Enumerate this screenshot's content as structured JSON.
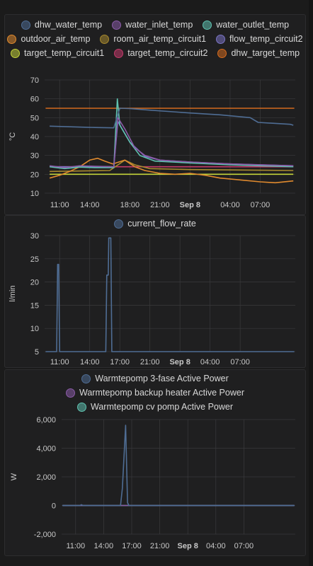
{
  "colors": {
    "background": "#1b1b1b",
    "panel": "#1f1f20",
    "grid": "#3a3a3c",
    "text": "#c8c8c8"
  },
  "chart_data": [
    {
      "type": "line",
      "ylabel": "°C",
      "ylim": [
        10,
        70
      ],
      "yticks": [
        10,
        20,
        30,
        40,
        50,
        60,
        70
      ],
      "x_tick_labels": [
        "11:00",
        "14:00",
        "18:00",
        "21:00",
        "Sep 8",
        "04:00",
        "07:00"
      ],
      "x_tick_hours": [
        11,
        14,
        18,
        21,
        24,
        28,
        31
      ],
      "xlim_hours": [
        9.5,
        34.5
      ],
      "grid": true,
      "legend_position": "top-center",
      "series": [
        {
          "name": "dhw_water_temp",
          "color": "#4f6d94",
          "points": [
            [
              10,
              45.5
            ],
            [
              14.5,
              44.8
            ],
            [
              16.4,
              44.6
            ],
            [
              17.0,
              55.0
            ],
            [
              18.0,
              54.8
            ],
            [
              20.0,
              54.0
            ],
            [
              24.0,
              52.5
            ],
            [
              27.0,
              51.5
            ],
            [
              30.0,
              50.0
            ],
            [
              30.8,
              47.5
            ],
            [
              34.0,
              46.5
            ],
            [
              34.3,
              46.0
            ]
          ]
        },
        {
          "name": "water_inlet_temp",
          "color": "#8b5ba8",
          "points": [
            [
              10,
              24.5
            ],
            [
              11.5,
              23.5
            ],
            [
              13.0,
              24.5
            ],
            [
              14.5,
              24.2
            ],
            [
              16.4,
              24.0
            ],
            [
              16.8,
              50.0
            ],
            [
              17.5,
              44.0
            ],
            [
              18.5,
              34.0
            ],
            [
              19.5,
              30.0
            ],
            [
              21.0,
              27.5
            ],
            [
              24.0,
              26.5
            ],
            [
              28.0,
              25.5
            ],
            [
              31.0,
              25.0
            ],
            [
              34.3,
              24.5
            ]
          ]
        },
        {
          "name": "water_outlet_temp",
          "color": "#5fc2b0",
          "points": [
            [
              10,
              24.0
            ],
            [
              11.5,
              23.0
            ],
            [
              13.0,
              23.8
            ],
            [
              14.5,
              23.5
            ],
            [
              16.4,
              23.5
            ],
            [
              16.75,
              60.0
            ],
            [
              17.0,
              46.0
            ],
            [
              18.0,
              37.0
            ],
            [
              19.0,
              30.0
            ],
            [
              20.5,
              27.0
            ],
            [
              24.0,
              26.0
            ],
            [
              28.0,
              25.0
            ],
            [
              31.0,
              24.5
            ],
            [
              34.3,
              24.0
            ]
          ]
        },
        {
          "name": "outdoor_air_temp",
          "color": "#e08a2e",
          "points": [
            [
              10,
              18.0
            ],
            [
              11.0,
              19.5
            ],
            [
              12.0,
              21.5
            ],
            [
              13.0,
              24.0
            ],
            [
              14.0,
              27.5
            ],
            [
              14.8,
              28.5
            ],
            [
              15.5,
              27.0
            ],
            [
              16.3,
              25.5
            ],
            [
              17.5,
              27.5
            ],
            [
              18.5,
              24.0
            ],
            [
              19.5,
              22.0
            ],
            [
              21.0,
              20.5
            ],
            [
              22.5,
              20.0
            ],
            [
              24.0,
              20.5
            ],
            [
              25.5,
              19.5
            ],
            [
              27.0,
              18.0
            ],
            [
              29.0,
              17.0
            ],
            [
              31.0,
              16.0
            ],
            [
              32.5,
              15.5
            ],
            [
              34.3,
              16.5
            ]
          ]
        },
        {
          "name": "room_air_temp_circuit1",
          "color": "#a88a2e",
          "points": [
            [
              10,
              21.5
            ],
            [
              16.0,
              22.0
            ],
            [
              17.5,
              27.5
            ],
            [
              18.5,
              25.0
            ],
            [
              20.0,
              23.0
            ],
            [
              24.0,
              22.5
            ],
            [
              34.3,
              22.0
            ]
          ]
        },
        {
          "name": "flow_temp_circuit2",
          "color": "#7b74c4",
          "points": [
            [
              10,
              24.0
            ],
            [
              16.4,
              24.0
            ],
            [
              16.8,
              48.0
            ],
            [
              18.0,
              37.0
            ],
            [
              19.5,
              29.5
            ],
            [
              21.0,
              27.5
            ],
            [
              24.0,
              26.5
            ],
            [
              28.0,
              25.5
            ],
            [
              34.3,
              24.5
            ]
          ]
        },
        {
          "name": "target_temp_circuit1",
          "color": "#c4d43a",
          "points": [
            [
              10,
              20.0
            ],
            [
              34.3,
              20.0
            ]
          ]
        },
        {
          "name": "target_temp_circuit2",
          "color": "#c43a6a",
          "points": [
            [
              10,
              24.0
            ],
            [
              34.3,
              24.0
            ]
          ]
        },
        {
          "name": "dhw_target_temp",
          "color": "#d46a1e",
          "points": [
            [
              9.6,
              55.0
            ],
            [
              34.4,
              55.0
            ]
          ]
        }
      ]
    },
    {
      "type": "line",
      "ylabel": "l/min",
      "ylim": [
        5,
        30
      ],
      "yticks": [
        5,
        10,
        15,
        20,
        25,
        30
      ],
      "x_tick_labels": [
        "11:00",
        "14:00",
        "17:00",
        "21:00",
        "Sep 8",
        "04:00",
        "07:00"
      ],
      "x_tick_hours": [
        11,
        14,
        17,
        20,
        23,
        26,
        29
      ],
      "xlim_hours": [
        9.5,
        34.5
      ],
      "grid": true,
      "legend_position": "top-center",
      "series": [
        {
          "name": "current_flow_rate",
          "color": "#4f6d94",
          "points": [
            [
              9.6,
              5
            ],
            [
              10.7,
              5
            ],
            [
              10.8,
              23.8
            ],
            [
              10.9,
              23.8
            ],
            [
              11.0,
              5
            ],
            [
              15.6,
              5
            ],
            [
              15.7,
              21.5
            ],
            [
              15.85,
              21.5
            ],
            [
              15.9,
              29.5
            ],
            [
              16.1,
              29.5
            ],
            [
              16.2,
              5
            ],
            [
              34.4,
              5
            ]
          ]
        }
      ]
    },
    {
      "type": "line",
      "ylabel": "W",
      "ylim": [
        -2000,
        6000
      ],
      "yticks": [
        -2000,
        0,
        2000,
        4000,
        6000
      ],
      "ytick_labels": [
        "-2,000",
        "0",
        "2,000",
        "4,000",
        "6,000"
      ],
      "x_tick_labels": [
        "11:00",
        "14:00",
        "17:00",
        "21:00",
        "Sep 8",
        "04:00",
        "07:00"
      ],
      "x_tick_hours": [
        11,
        14,
        17,
        20,
        23,
        26,
        29
      ],
      "xlim_hours": [
        9.5,
        34.5
      ],
      "grid": true,
      "legend_position": "top-center",
      "series": [
        {
          "name": "Warmtepomp 3-fase Active Power",
          "color": "#4f6d94",
          "points": [
            [
              9.6,
              0
            ],
            [
              11.5,
              0
            ],
            [
              11.6,
              60
            ],
            [
              11.8,
              0
            ],
            [
              15.8,
              0
            ],
            [
              16.0,
              1200
            ],
            [
              16.35,
              5600
            ],
            [
              16.55,
              200
            ],
            [
              16.7,
              0
            ],
            [
              34.4,
              0
            ]
          ]
        },
        {
          "name": "Warmtepomp backup heater Active Power",
          "color": "#8b5ba8",
          "points": [
            [
              9.6,
              0
            ],
            [
              34.4,
              0
            ]
          ]
        },
        {
          "name": "Warmtepomp cv pomp Active Power",
          "color": "#5fc2b0",
          "points": [
            [
              9.6,
              0
            ],
            [
              34.4,
              0
            ]
          ]
        }
      ]
    }
  ]
}
